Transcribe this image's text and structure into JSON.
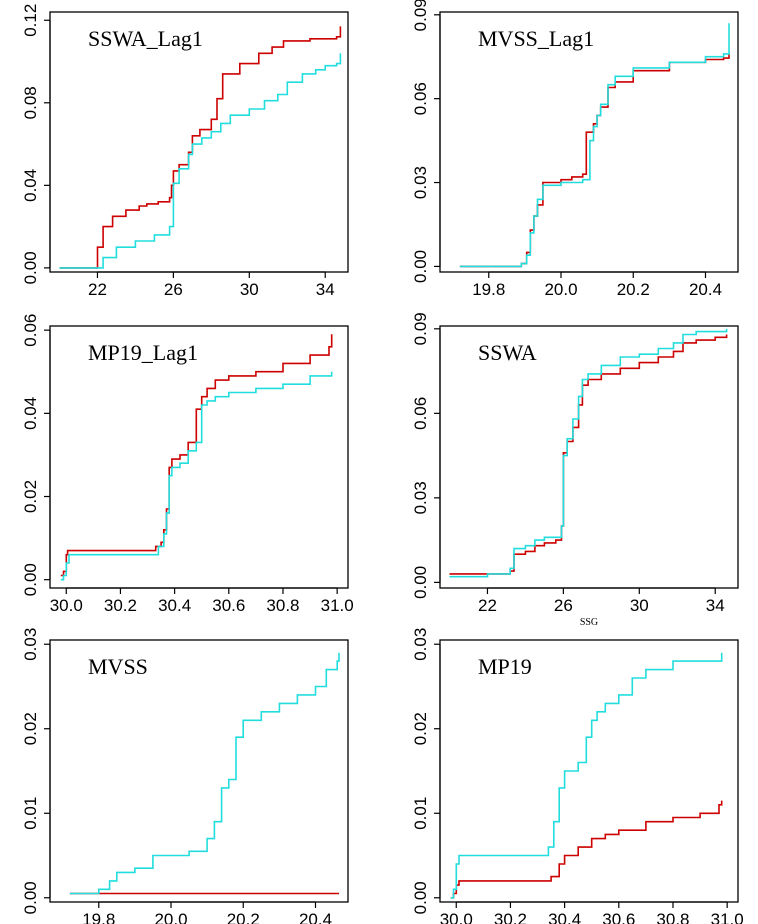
{
  "chart_data": [
    {
      "type": "line",
      "title": "SSWA_Lag1",
      "xlabel": "",
      "ylabel": "",
      "xlim": [
        19.5,
        35.2
      ],
      "ylim": [
        -0.002,
        0.124
      ],
      "xticks": [
        22,
        26,
        30,
        34
      ],
      "xtick_labels": [
        "22",
        "26",
        "30",
        "34"
      ],
      "yticks": [
        0,
        0.04,
        0.08,
        0.12
      ],
      "ytick_labels": [
        "0.00",
        "0.04",
        "0.08",
        "0.12"
      ],
      "series": [
        {
          "color": "#cc0000",
          "x": [
            20,
            21.9,
            22.0,
            22.3,
            22.8,
            23.5,
            24.2,
            24.6,
            25.2,
            25.8,
            25.9,
            26.0,
            26.3,
            26.8,
            27.0,
            27.4,
            28.0,
            28.3,
            28.6,
            29.5,
            30.5,
            31.2,
            31.8,
            33.2,
            34.0,
            34.6,
            34.8
          ],
          "y": [
            0,
            0,
            0.01,
            0.02,
            0.025,
            0.028,
            0.03,
            0.031,
            0.032,
            0.034,
            0.04,
            0.047,
            0.05,
            0.056,
            0.064,
            0.067,
            0.072,
            0.082,
            0.094,
            0.099,
            0.104,
            0.107,
            0.11,
            0.111,
            0.111,
            0.112,
            0.117
          ]
        },
        {
          "color": "#22dddd",
          "x": [
            20,
            22.0,
            22.3,
            23.0,
            24.0,
            25.0,
            25.8,
            26.0,
            26.3,
            26.8,
            27.0,
            27.5,
            28.0,
            28.5,
            29.0,
            30.0,
            30.8,
            31.5,
            32.0,
            32.8,
            33.5,
            34.0,
            34.6,
            34.8
          ],
          "y": [
            0,
            0,
            0.005,
            0.01,
            0.013,
            0.016,
            0.02,
            0.041,
            0.048,
            0.055,
            0.06,
            0.063,
            0.066,
            0.07,
            0.074,
            0.077,
            0.081,
            0.084,
            0.09,
            0.094,
            0.096,
            0.098,
            0.099,
            0.104
          ]
        }
      ]
    },
    {
      "type": "line",
      "title": "MVSS_Lag1",
      "xlabel": "",
      "ylabel": "",
      "xlim": [
        19.665,
        20.49
      ],
      "ylim": [
        -0.002,
        0.091
      ],
      "xticks": [
        19.8,
        20.0,
        20.2,
        20.4
      ],
      "xtick_labels": [
        "19.8",
        "20.0",
        "20.2",
        "20.4"
      ],
      "yticks": [
        0,
        0.03,
        0.06,
        0.09
      ],
      "ytick_labels": [
        "0.00",
        "0.03",
        "0.06",
        "0.09"
      ],
      "series": [
        {
          "color": "#cc0000",
          "x": [
            19.72,
            19.86,
            19.89,
            19.905,
            19.915,
            19.925,
            19.935,
            19.95,
            20.0,
            20.03,
            20.06,
            20.07,
            20.09,
            20.1,
            20.11,
            20.13,
            20.15,
            20.2,
            20.3,
            20.4,
            20.45,
            20.465
          ],
          "y": [
            0,
            0,
            0.001,
            0.005,
            0.013,
            0.018,
            0.022,
            0.03,
            0.031,
            0.032,
            0.033,
            0.048,
            0.051,
            0.054,
            0.057,
            0.064,
            0.066,
            0.07,
            0.073,
            0.074,
            0.0745,
            0.076
          ]
        },
        {
          "color": "#22dddd",
          "x": [
            19.72,
            19.86,
            19.89,
            19.905,
            19.915,
            19.925,
            19.935,
            19.95,
            20.0,
            20.03,
            20.06,
            20.08,
            20.09,
            20.1,
            20.11,
            20.13,
            20.15,
            20.2,
            20.3,
            20.4,
            20.45,
            20.465
          ],
          "y": [
            0,
            0,
            0.001,
            0.004,
            0.012,
            0.018,
            0.024,
            0.029,
            0.03,
            0.03,
            0.031,
            0.045,
            0.05,
            0.054,
            0.058,
            0.065,
            0.068,
            0.071,
            0.073,
            0.075,
            0.076,
            0.087
          ]
        }
      ]
    },
    {
      "type": "line",
      "title": "MP19_Lag1",
      "xlabel": "",
      "ylabel": "",
      "xlim": [
        29.94,
        31.04
      ],
      "ylim": [
        -0.002,
        0.061
      ],
      "xticks": [
        30.0,
        30.2,
        30.4,
        30.6,
        30.8,
        31.0
      ],
      "xtick_labels": [
        "30.0",
        "30.2",
        "30.4",
        "30.6",
        "30.8",
        "31.0"
      ],
      "yticks": [
        0,
        0.02,
        0.04,
        0.06
      ],
      "ytick_labels": [
        "0.00",
        "0.02",
        "0.04",
        "0.06"
      ],
      "series": [
        {
          "color": "#cc0000",
          "x": [
            29.98,
            29.99,
            30.0,
            30.005,
            30.1,
            30.2,
            30.3,
            30.33,
            30.35,
            30.36,
            30.37,
            30.38,
            30.39,
            30.42,
            30.45,
            30.48,
            30.5,
            30.52,
            30.55,
            30.6,
            30.7,
            30.8,
            30.9,
            30.97,
            30.98
          ],
          "y": [
            0.001,
            0.002,
            0.006,
            0.007,
            0.007,
            0.007,
            0.007,
            0.008,
            0.009,
            0.012,
            0.017,
            0.027,
            0.029,
            0.03,
            0.033,
            0.041,
            0.044,
            0.046,
            0.048,
            0.049,
            0.05,
            0.052,
            0.054,
            0.056,
            0.059
          ]
        },
        {
          "color": "#22dddd",
          "x": [
            29.98,
            29.99,
            30.0,
            30.01,
            30.1,
            30.2,
            30.3,
            30.34,
            30.36,
            30.37,
            30.38,
            30.39,
            30.42,
            30.45,
            30.48,
            30.5,
            30.52,
            30.55,
            30.6,
            30.7,
            30.8,
            30.9,
            30.98
          ],
          "y": [
            0,
            0.001,
            0.004,
            0.006,
            0.006,
            0.006,
            0.006,
            0.008,
            0.011,
            0.016,
            0.025,
            0.027,
            0.028,
            0.031,
            0.033,
            0.042,
            0.043,
            0.044,
            0.045,
            0.046,
            0.047,
            0.049,
            0.05
          ]
        }
      ]
    },
    {
      "type": "line",
      "title": "SSWA",
      "xlabel": "SSG",
      "ylabel": "",
      "xlim": [
        19.5,
        35.2
      ],
      "ylim": [
        -0.002,
        0.091
      ],
      "xticks": [
        22,
        26,
        30,
        34
      ],
      "xtick_labels": [
        "22",
        "26",
        "30",
        "34"
      ],
      "yticks": [
        0,
        0.03,
        0.06,
        0.09
      ],
      "ytick_labels": [
        "0.00",
        "0.03",
        "0.06",
        "0.09"
      ],
      "series": [
        {
          "color": "#cc0000",
          "x": [
            20,
            22,
            23.2,
            23.4,
            24.0,
            24.5,
            25.0,
            25.6,
            25.9,
            26.0,
            26.2,
            26.5,
            26.8,
            27.0,
            27.3,
            28.0,
            29.0,
            30.0,
            31.0,
            31.8,
            32.3,
            33.0,
            34.0,
            34.6
          ],
          "y": [
            0.003,
            0.003,
            0.004,
            0.01,
            0.011,
            0.013,
            0.014,
            0.015,
            0.02,
            0.046,
            0.05,
            0.055,
            0.063,
            0.07,
            0.072,
            0.074,
            0.076,
            0.078,
            0.08,
            0.082,
            0.085,
            0.086,
            0.087,
            0.088
          ]
        },
        {
          "color": "#22dddd",
          "x": [
            20,
            22,
            23.2,
            23.4,
            24.0,
            24.5,
            25.0,
            25.6,
            25.9,
            26.0,
            26.2,
            26.5,
            26.8,
            27.0,
            27.3,
            28.0,
            29.0,
            30.0,
            31.0,
            31.8,
            32.3,
            33.0,
            34.0,
            34.6
          ],
          "y": [
            0.002,
            0.003,
            0.005,
            0.012,
            0.013,
            0.015,
            0.016,
            0.016,
            0.02,
            0.045,
            0.051,
            0.058,
            0.066,
            0.072,
            0.074,
            0.077,
            0.08,
            0.081,
            0.083,
            0.085,
            0.088,
            0.089,
            0.089,
            0.09
          ]
        }
      ]
    },
    {
      "type": "line",
      "title": "MVSS",
      "xlabel": "",
      "ylabel": "",
      "xlim": [
        19.665,
        20.49
      ],
      "ylim": [
        -0.0005,
        0.0305
      ],
      "xticks": [
        19.8,
        20.0,
        20.2,
        20.4
      ],
      "xtick_labels": [
        "19.8",
        "20.0",
        "20.2",
        "20.4"
      ],
      "yticks": [
        0,
        0.01,
        0.02,
        0.03
      ],
      "ytick_labels": [
        "0.00",
        "0.01",
        "0.02",
        "0.03"
      ],
      "series": [
        {
          "color": "#cc0000",
          "x": [
            19.72,
            20.465
          ],
          "y": [
            0.0005,
            0.0005
          ]
        },
        {
          "color": "#22dddd",
          "x": [
            19.72,
            19.78,
            19.8,
            19.83,
            19.85,
            19.9,
            19.95,
            20.0,
            20.05,
            20.1,
            20.12,
            20.14,
            20.16,
            20.18,
            20.2,
            20.25,
            20.3,
            20.35,
            20.4,
            20.43,
            20.46,
            20.465
          ],
          "y": [
            0.0005,
            0.0005,
            0.001,
            0.002,
            0.003,
            0.0035,
            0.005,
            0.005,
            0.0055,
            0.007,
            0.009,
            0.013,
            0.014,
            0.019,
            0.021,
            0.022,
            0.023,
            0.024,
            0.025,
            0.027,
            0.028,
            0.029
          ]
        }
      ]
    },
    {
      "type": "line",
      "title": "MP19",
      "xlabel": "",
      "ylabel": "",
      "xlim": [
        29.94,
        31.04
      ],
      "ylim": [
        -0.0005,
        0.0305
      ],
      "xticks": [
        30.0,
        30.2,
        30.4,
        30.6,
        30.8,
        31.0
      ],
      "xtick_labels": [
        "30.0",
        "30.2",
        "30.4",
        "30.6",
        "30.8",
        "31.0"
      ],
      "yticks": [
        0,
        0.01,
        0.02,
        0.03
      ],
      "ytick_labels": [
        "0.00",
        "0.01",
        "0.02",
        "0.03"
      ],
      "series": [
        {
          "color": "#cc0000",
          "x": [
            29.98,
            29.99,
            30.0,
            30.01,
            30.1,
            30.2,
            30.3,
            30.35,
            30.38,
            30.4,
            30.45,
            30.5,
            30.55,
            30.6,
            30.7,
            30.8,
            30.9,
            30.97,
            30.98
          ],
          "y": [
            0,
            0.0005,
            0.0015,
            0.002,
            0.002,
            0.002,
            0.002,
            0.0025,
            0.004,
            0.005,
            0.006,
            0.007,
            0.0075,
            0.008,
            0.009,
            0.0095,
            0.01,
            0.011,
            0.0115
          ]
        },
        {
          "color": "#22dddd",
          "x": [
            29.98,
            29.99,
            30.0,
            30.01,
            30.1,
            30.2,
            30.3,
            30.34,
            30.36,
            30.38,
            30.4,
            30.45,
            30.48,
            30.5,
            30.52,
            30.55,
            30.6,
            30.65,
            30.7,
            30.8,
            30.9,
            30.98
          ],
          "y": [
            0,
            0.001,
            0.004,
            0.005,
            0.005,
            0.005,
            0.005,
            0.006,
            0.009,
            0.013,
            0.015,
            0.016,
            0.019,
            0.021,
            0.022,
            0.023,
            0.024,
            0.026,
            0.027,
            0.028,
            0.028,
            0.029
          ]
        }
      ]
    }
  ]
}
